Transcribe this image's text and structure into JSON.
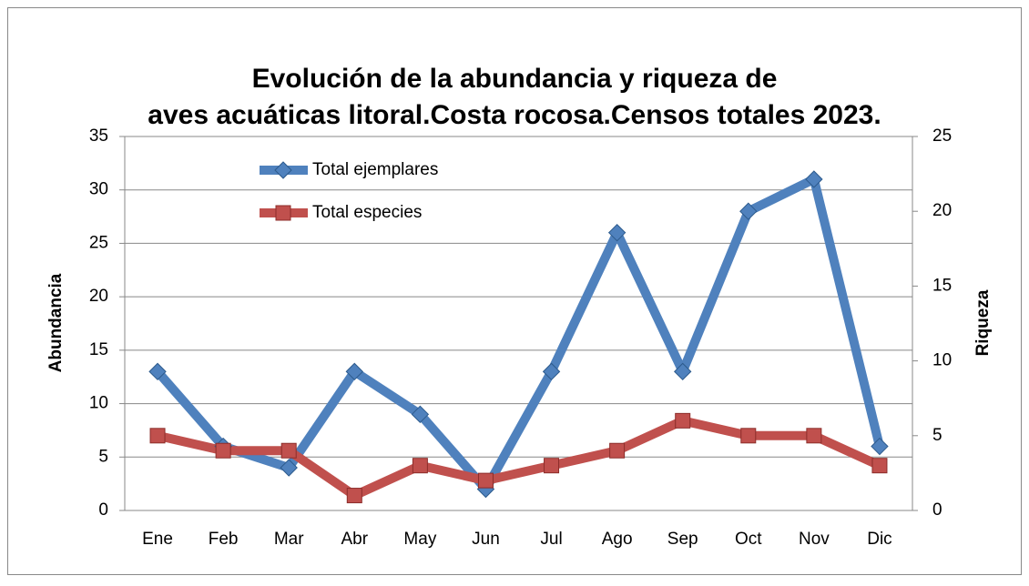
{
  "chart_data": {
    "type": "line",
    "title": "Evolución de la abundancia y riqueza de aves acuáticas litoral.Costa rocosa.Censos totales 2023.",
    "categories": [
      "Ene",
      "Feb",
      "Mar",
      "Abr",
      "May",
      "Jun",
      "Jul",
      "Ago",
      "Sep",
      "Oct",
      "Nov",
      "Dic"
    ],
    "series": [
      {
        "name": "Total ejemplares",
        "color": "#4f81bd",
        "marker": "diamond",
        "values": [
          13,
          6,
          4,
          13,
          9,
          2,
          13,
          26,
          13,
          28,
          31,
          6
        ]
      },
      {
        "name": "Total especies",
        "color": "#c0504d",
        "marker": "square",
        "axis": "y2",
        "values": [
          5,
          4,
          4,
          1,
          3,
          2,
          3,
          4,
          6,
          5,
          5,
          3
        ]
      }
    ],
    "ylabel": "Abundancia",
    "y2label": "Riqueza",
    "ylim": [
      0,
      35
    ],
    "yticks": [
      0,
      5,
      10,
      15,
      20,
      25,
      30,
      35
    ],
    "y2lim": [
      0,
      25
    ],
    "y2ticks": [
      0,
      5,
      10,
      15,
      20,
      25
    ],
    "grid": true,
    "legend": "upper left"
  }
}
